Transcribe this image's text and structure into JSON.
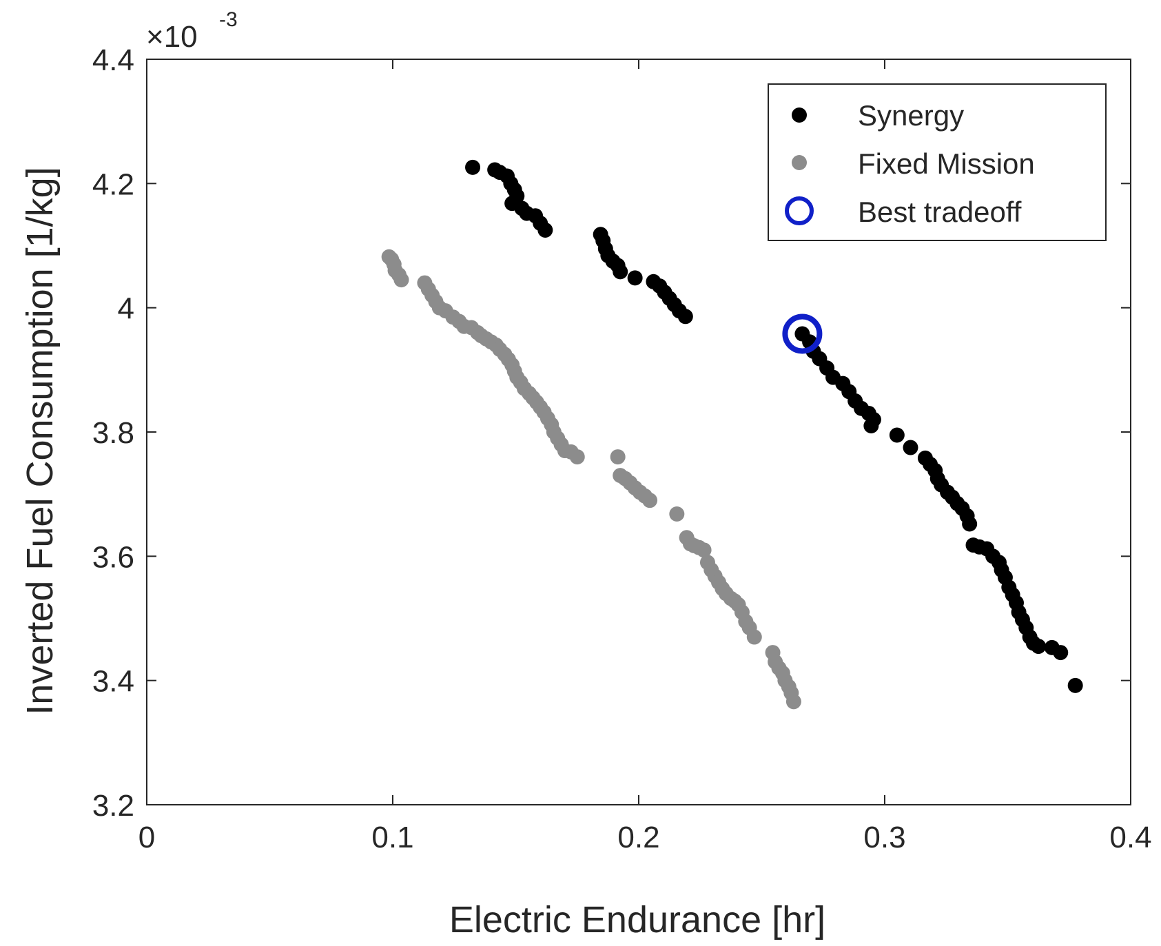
{
  "chart_data": {
    "type": "scatter",
    "title": "",
    "xlabel": "Electric Endurance [hr]",
    "ylabel": "Inverted Fuel Consumption [1/kg]",
    "y_exponent_label": "×10",
    "y_exponent_power": "-3",
    "xlim": [
      0,
      0.4
    ],
    "ylim": [
      3.2,
      4.4
    ],
    "xticks": [
      0,
      0.1,
      0.2,
      0.3,
      0.4
    ],
    "xtick_labels": [
      "0",
      "0.1",
      "0.2",
      "0.3",
      "0.4"
    ],
    "yticks": [
      3.2,
      3.4,
      3.6,
      3.8,
      4.0,
      4.2,
      4.4
    ],
    "ytick_labels": [
      "3.2",
      "3.4",
      "3.6",
      "3.8",
      "4",
      "4.2",
      "4.4"
    ],
    "grid": false,
    "legend_position": "top-right",
    "series": [
      {
        "name": "Fixed Mission",
        "color": "#8c8c8c",
        "marker": "filled-circle",
        "points": [
          [
            0.0985,
            4.082
          ],
          [
            0.0995,
            4.078
          ],
          [
            0.1005,
            4.07
          ],
          [
            0.101,
            4.06
          ],
          [
            0.1025,
            4.053
          ],
          [
            0.1035,
            4.045
          ],
          [
            0.113,
            4.04
          ],
          [
            0.1145,
            4.03
          ],
          [
            0.116,
            4.02
          ],
          [
            0.1175,
            4.01
          ],
          [
            0.119,
            4.0
          ],
          [
            0.1215,
            3.995
          ],
          [
            0.1245,
            3.985
          ],
          [
            0.127,
            3.978
          ],
          [
            0.129,
            3.97
          ],
          [
            0.132,
            3.968
          ],
          [
            0.1345,
            3.96
          ],
          [
            0.136,
            3.955
          ],
          [
            0.138,
            3.95
          ],
          [
            0.14,
            3.945
          ],
          [
            0.142,
            3.94
          ],
          [
            0.1435,
            3.933
          ],
          [
            0.1455,
            3.925
          ],
          [
            0.147,
            3.917
          ],
          [
            0.1485,
            3.908
          ],
          [
            0.1495,
            3.898
          ],
          [
            0.1505,
            3.888
          ],
          [
            0.152,
            3.88
          ],
          [
            0.1535,
            3.87
          ],
          [
            0.1555,
            3.862
          ],
          [
            0.157,
            3.855
          ],
          [
            0.1585,
            3.848
          ],
          [
            0.16,
            3.84
          ],
          [
            0.1615,
            3.832
          ],
          [
            0.163,
            3.822
          ],
          [
            0.1645,
            3.812
          ],
          [
            0.1655,
            3.8
          ],
          [
            0.167,
            3.79
          ],
          [
            0.1685,
            3.78
          ],
          [
            0.17,
            3.77
          ],
          [
            0.1725,
            3.768
          ],
          [
            0.175,
            3.76
          ],
          [
            0.1915,
            3.76
          ],
          [
            0.1925,
            3.73
          ],
          [
            0.1945,
            3.725
          ],
          [
            0.1965,
            3.718
          ],
          [
            0.1985,
            3.71
          ],
          [
            0.2005,
            3.703
          ],
          [
            0.2025,
            3.697
          ],
          [
            0.2045,
            3.69
          ],
          [
            0.2155,
            3.668
          ],
          [
            0.2195,
            3.63
          ],
          [
            0.221,
            3.62
          ],
          [
            0.2225,
            3.617
          ],
          [
            0.2245,
            3.614
          ],
          [
            0.2265,
            3.61
          ],
          [
            0.228,
            3.59
          ],
          [
            0.2295,
            3.578
          ],
          [
            0.231,
            3.568
          ],
          [
            0.2325,
            3.558
          ],
          [
            0.234,
            3.548
          ],
          [
            0.2355,
            3.54
          ],
          [
            0.2375,
            3.532
          ],
          [
            0.239,
            3.528
          ],
          [
            0.2405,
            3.522
          ],
          [
            0.242,
            3.51
          ],
          [
            0.2435,
            3.495
          ],
          [
            0.245,
            3.485
          ],
          [
            0.247,
            3.47
          ],
          [
            0.2545,
            3.445
          ],
          [
            0.2555,
            3.43
          ],
          [
            0.257,
            3.42
          ],
          [
            0.2585,
            3.412
          ],
          [
            0.2595,
            3.4
          ],
          [
            0.261,
            3.39
          ],
          [
            0.262,
            3.38
          ],
          [
            0.263,
            3.366
          ]
        ]
      },
      {
        "name": "Synergy",
        "color": "#000000",
        "marker": "filled-circle",
        "points": [
          [
            0.1325,
            4.226
          ],
          [
            0.1415,
            4.222
          ],
          [
            0.1435,
            4.218
          ],
          [
            0.1465,
            4.212
          ],
          [
            0.148,
            4.2
          ],
          [
            0.1495,
            4.19
          ],
          [
            0.1505,
            4.18
          ],
          [
            0.1485,
            4.168
          ],
          [
            0.1525,
            4.16
          ],
          [
            0.1545,
            4.152
          ],
          [
            0.158,
            4.148
          ],
          [
            0.16,
            4.136
          ],
          [
            0.162,
            4.125
          ],
          [
            0.1845,
            4.118
          ],
          [
            0.1855,
            4.108
          ],
          [
            0.1865,
            4.095
          ],
          [
            0.1875,
            4.084
          ],
          [
            0.1895,
            4.075
          ],
          [
            0.1915,
            4.068
          ],
          [
            0.1925,
            4.058
          ],
          [
            0.1985,
            4.048
          ],
          [
            0.206,
            4.042
          ],
          [
            0.2085,
            4.035
          ],
          [
            0.2105,
            4.025
          ],
          [
            0.2125,
            4.015
          ],
          [
            0.2145,
            4.005
          ],
          [
            0.2165,
            3.995
          ],
          [
            0.219,
            3.986
          ],
          [
            0.2665,
            3.958
          ],
          [
            0.2695,
            3.945
          ],
          [
            0.271,
            3.93
          ],
          [
            0.2735,
            3.918
          ],
          [
            0.2765,
            3.903
          ],
          [
            0.279,
            3.888
          ],
          [
            0.283,
            3.878
          ],
          [
            0.2855,
            3.865
          ],
          [
            0.288,
            3.85
          ],
          [
            0.2905,
            3.838
          ],
          [
            0.2935,
            3.83
          ],
          [
            0.2955,
            3.82
          ],
          [
            0.2945,
            3.81
          ],
          [
            0.305,
            3.795
          ],
          [
            0.3105,
            3.775
          ],
          [
            0.3165,
            3.758
          ],
          [
            0.3185,
            3.748
          ],
          [
            0.3205,
            3.738
          ],
          [
            0.3215,
            3.725
          ],
          [
            0.323,
            3.715
          ],
          [
            0.3255,
            3.703
          ],
          [
            0.3275,
            3.695
          ],
          [
            0.3295,
            3.685
          ],
          [
            0.3315,
            3.677
          ],
          [
            0.3335,
            3.665
          ],
          [
            0.3345,
            3.652
          ],
          [
            0.336,
            3.618
          ],
          [
            0.3385,
            3.615
          ],
          [
            0.3415,
            3.612
          ],
          [
            0.344,
            3.6
          ],
          [
            0.3465,
            3.59
          ],
          [
            0.3475,
            3.578
          ],
          [
            0.349,
            3.566
          ],
          [
            0.3505,
            3.55
          ],
          [
            0.352,
            3.538
          ],
          [
            0.3535,
            3.525
          ],
          [
            0.3545,
            3.51
          ],
          [
            0.356,
            3.498
          ],
          [
            0.3575,
            3.485
          ],
          [
            0.359,
            3.47
          ],
          [
            0.3605,
            3.46
          ],
          [
            0.3625,
            3.455
          ],
          [
            0.368,
            3.453
          ],
          [
            0.3715,
            3.445
          ],
          [
            0.3775,
            3.392
          ]
        ]
      }
    ],
    "highlight": {
      "name": "Best tradeoff",
      "color": "#1020c8",
      "marker": "open-circle",
      "x": 0.2665,
      "y": 3.958
    },
    "legend": [
      {
        "label": "Synergy",
        "color": "#000000",
        "marker": "filled-circle"
      },
      {
        "label": "Fixed Mission",
        "color": "#8c8c8c",
        "marker": "filled-circle"
      },
      {
        "label": "Best tradeoff",
        "color": "#1020c8",
        "marker": "open-circle"
      }
    ]
  }
}
